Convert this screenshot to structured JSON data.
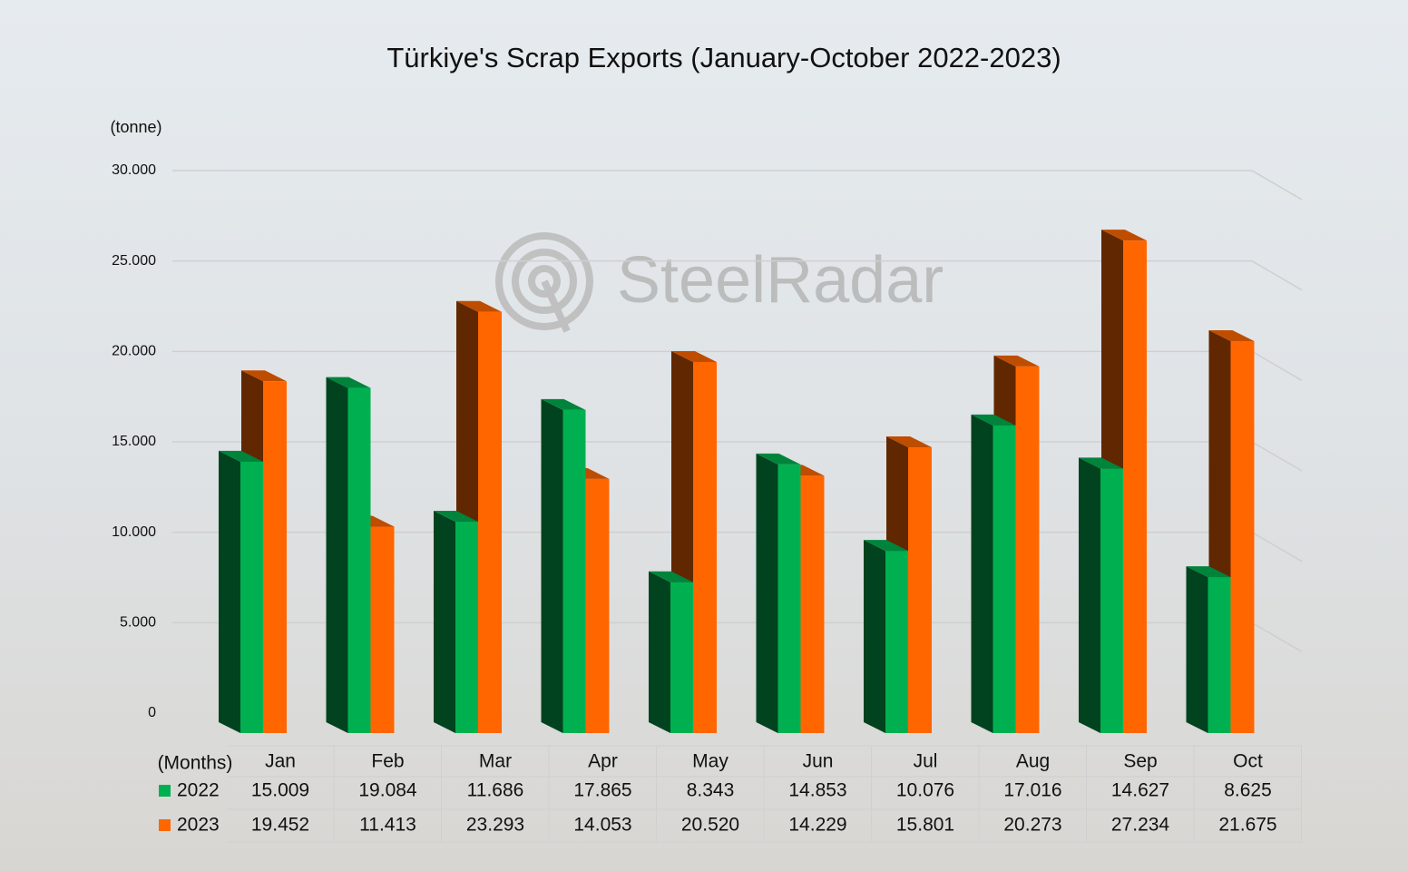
{
  "chart_data": {
    "type": "bar3d",
    "title": "Türkiye's Scrap Exports (January-October 2022-2023)",
    "y_unit": "(tonne)",
    "x_label": "(Months)",
    "watermark": "SteelRadar",
    "categories": [
      "Jan",
      "Feb",
      "Mar",
      "Apr",
      "May",
      "Jun",
      "Jul",
      "Aug",
      "Sep",
      "Oct"
    ],
    "series": [
      {
        "name": "2022",
        "color": "#00b050",
        "values": [
          15009,
          19084,
          11686,
          17865,
          8343,
          14853,
          10076,
          17016,
          14627,
          8625
        ],
        "value_labels": [
          "15.009",
          "19.084",
          "11.686",
          "17.865",
          "8.343",
          "14.853",
          "10.076",
          "17.016",
          "14.627",
          "8.625"
        ]
      },
      {
        "name": "2023",
        "color": "#ff6600",
        "values": [
          19452,
          11413,
          23293,
          14053,
          20520,
          14229,
          15801,
          20273,
          27234,
          21675
        ],
        "value_labels": [
          "19.452",
          "11.413",
          "23.293",
          "14.053",
          "20.520",
          "14.229",
          "15.801",
          "20.273",
          "27.234",
          "21.675"
        ]
      }
    ],
    "ylim": [
      0,
      30000
    ],
    "yticks": [
      0,
      {
        "value": 5000,
        "label": "5.000"
      },
      {
        "value": 10000,
        "label": "10.000"
      },
      {
        "value": 15000,
        "label": "15.000"
      },
      {
        "value": 20000,
        "label": "20.000"
      },
      {
        "value": 25000,
        "label": "25.000"
      },
      {
        "value": 30000,
        "label": "30.000"
      }
    ],
    "grid": true
  }
}
